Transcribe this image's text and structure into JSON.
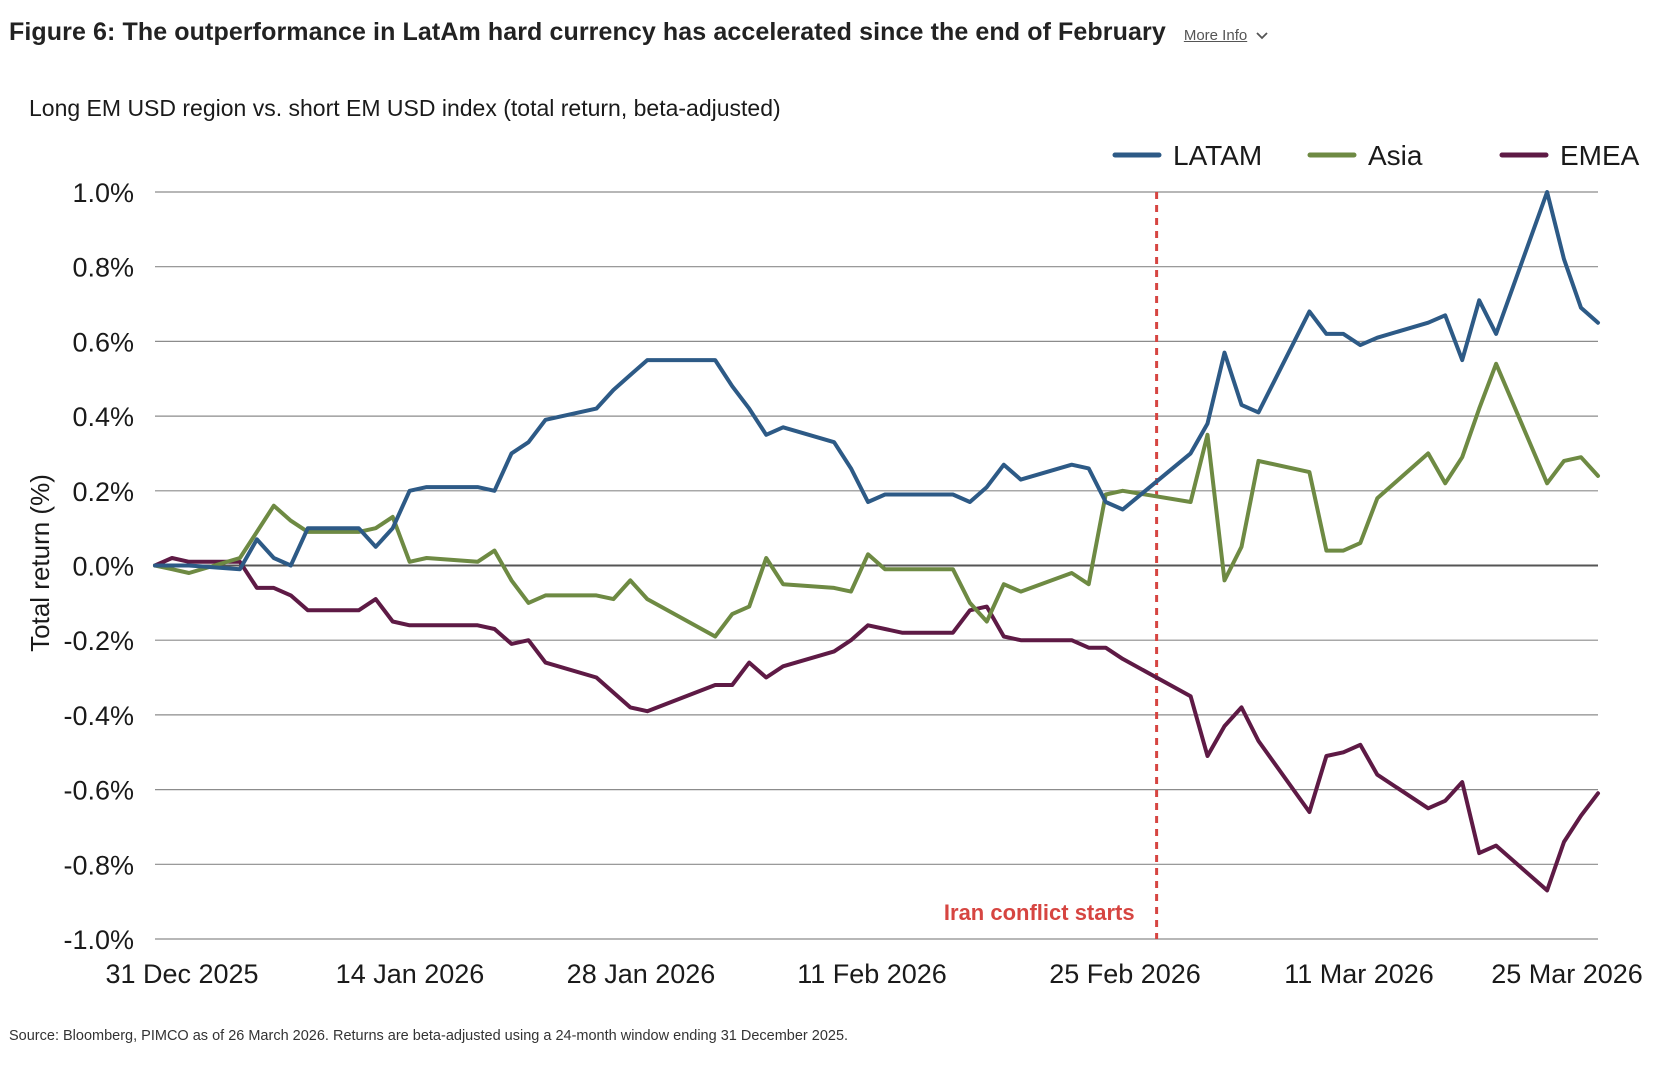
{
  "header": {
    "figure_title": "Figure 6: The outperformance in LatAm hard currency has accelerated since the end of February",
    "more_info_label": "More Info",
    "more_info_icon": "chevron-down-icon"
  },
  "footer": {
    "source": "Source: Bloomberg, PIMCO as of 26 March 2026. Returns are beta-adjusted using a 24-month window ending 31 December 2025."
  },
  "colors": {
    "latam": "#2d5a86",
    "asia": "#6e8a43",
    "emea": "#5e1a45",
    "annotation": "#d64541",
    "grid": "#8c8c8c",
    "zero_line": "#555555"
  },
  "chart_data": {
    "type": "line",
    "subtitle": "Long EM USD region vs. short EM USD index (total return, beta-adjusted)",
    "xlabel": "",
    "ylabel": "Total return (%)",
    "x_ticks": [
      "31 Dec 2025",
      "14 Jan 2026",
      "28 Jan 2026",
      "11 Feb 2026",
      "25 Feb 2026",
      "11 Mar 2026",
      "25 Mar 2026"
    ],
    "x_range": [
      "2025-12-31",
      "2026-03-26"
    ],
    "ylim": [
      -1.0,
      1.0
    ],
    "y_ticks": [
      "1.0%",
      "0.8%",
      "0.6%",
      "0.4%",
      "0.2%",
      "0.0%",
      "-0.2%",
      "-0.4%",
      "-0.6%",
      "-0.8%",
      "-1.0%"
    ],
    "grid": true,
    "legend_position": "top-right",
    "annotation": {
      "label": "Iran conflict starts",
      "x": "2026-02-28"
    },
    "series": [
      {
        "name": "LATAM",
        "points": [
          [
            "2025-12-31",
            0.0
          ],
          [
            "2026-01-01",
            0.0
          ],
          [
            "2026-01-02",
            0.0
          ],
          [
            "2026-01-05",
            -0.01
          ],
          [
            "2026-01-06",
            0.07
          ],
          [
            "2026-01-07",
            0.02
          ],
          [
            "2026-01-08",
            0.0
          ],
          [
            "2026-01-09",
            0.1
          ],
          [
            "2026-01-12",
            0.1
          ],
          [
            "2026-01-13",
            0.05
          ],
          [
            "2026-01-14",
            0.1
          ],
          [
            "2026-01-15",
            0.2
          ],
          [
            "2026-01-16",
            0.21
          ],
          [
            "2026-01-19",
            0.21
          ],
          [
            "2026-01-20",
            0.2
          ],
          [
            "2026-01-21",
            0.3
          ],
          [
            "2026-01-22",
            0.33
          ],
          [
            "2026-01-23",
            0.39
          ],
          [
            "2026-01-26",
            0.42
          ],
          [
            "2026-01-27",
            0.47
          ],
          [
            "2026-01-28",
            0.51
          ],
          [
            "2026-01-29",
            0.55
          ],
          [
            "2026-02-02",
            0.55
          ],
          [
            "2026-02-03",
            0.48
          ],
          [
            "2026-02-04",
            0.42
          ],
          [
            "2026-02-05",
            0.35
          ],
          [
            "2026-02-06",
            0.37
          ],
          [
            "2026-02-09",
            0.33
          ],
          [
            "2026-02-10",
            0.26
          ],
          [
            "2026-02-11",
            0.17
          ],
          [
            "2026-02-12",
            0.19
          ],
          [
            "2026-02-13",
            0.19
          ],
          [
            "2026-02-16",
            0.19
          ],
          [
            "2026-02-17",
            0.17
          ],
          [
            "2026-02-18",
            0.21
          ],
          [
            "2026-02-19",
            0.27
          ],
          [
            "2026-02-20",
            0.23
          ],
          [
            "2026-02-23",
            0.27
          ],
          [
            "2026-02-24",
            0.26
          ],
          [
            "2026-02-25",
            0.17
          ],
          [
            "2026-02-26",
            0.15
          ],
          [
            "2026-03-02",
            0.3
          ],
          [
            "2026-03-03",
            0.38
          ],
          [
            "2026-03-04",
            0.57
          ],
          [
            "2026-03-05",
            0.43
          ],
          [
            "2026-03-06",
            0.41
          ],
          [
            "2026-03-09",
            0.68
          ],
          [
            "2026-03-10",
            0.62
          ],
          [
            "2026-03-11",
            0.62
          ],
          [
            "2026-03-12",
            0.59
          ],
          [
            "2026-03-13",
            0.61
          ],
          [
            "2026-03-16",
            0.65
          ],
          [
            "2026-03-17",
            0.67
          ],
          [
            "2026-03-18",
            0.55
          ],
          [
            "2026-03-19",
            0.71
          ],
          [
            "2026-03-20",
            0.62
          ],
          [
            "2026-03-23",
            1.0
          ],
          [
            "2026-03-24",
            0.82
          ],
          [
            "2026-03-25",
            0.69
          ],
          [
            "2026-03-26",
            0.65
          ]
        ]
      },
      {
        "name": "Asia",
        "points": [
          [
            "2025-12-31",
            0.0
          ],
          [
            "2026-01-01",
            -0.01
          ],
          [
            "2026-01-02",
            -0.02
          ],
          [
            "2026-01-05",
            0.02
          ],
          [
            "2026-01-06",
            0.09
          ],
          [
            "2026-01-07",
            0.16
          ],
          [
            "2026-01-08",
            0.12
          ],
          [
            "2026-01-09",
            0.09
          ],
          [
            "2026-01-12",
            0.09
          ],
          [
            "2026-01-13",
            0.1
          ],
          [
            "2026-01-14",
            0.13
          ],
          [
            "2026-01-15",
            0.01
          ],
          [
            "2026-01-16",
            0.02
          ],
          [
            "2026-01-19",
            0.01
          ],
          [
            "2026-01-20",
            0.04
          ],
          [
            "2026-01-21",
            -0.04
          ],
          [
            "2026-01-22",
            -0.1
          ],
          [
            "2026-01-23",
            -0.08
          ],
          [
            "2026-01-26",
            -0.08
          ],
          [
            "2026-01-27",
            -0.09
          ],
          [
            "2026-01-28",
            -0.04
          ],
          [
            "2026-01-29",
            -0.09
          ],
          [
            "2026-02-02",
            -0.19
          ],
          [
            "2026-02-03",
            -0.13
          ],
          [
            "2026-02-04",
            -0.11
          ],
          [
            "2026-02-05",
            0.02
          ],
          [
            "2026-02-06",
            -0.05
          ],
          [
            "2026-02-09",
            -0.06
          ],
          [
            "2026-02-10",
            -0.07
          ],
          [
            "2026-02-11",
            0.03
          ],
          [
            "2026-02-12",
            -0.01
          ],
          [
            "2026-02-13",
            -0.01
          ],
          [
            "2026-02-16",
            -0.01
          ],
          [
            "2026-02-17",
            -0.1
          ],
          [
            "2026-02-18",
            -0.15
          ],
          [
            "2026-02-19",
            -0.05
          ],
          [
            "2026-02-20",
            -0.07
          ],
          [
            "2026-02-23",
            -0.02
          ],
          [
            "2026-02-24",
            -0.05
          ],
          [
            "2026-02-25",
            0.19
          ],
          [
            "2026-02-26",
            0.2
          ],
          [
            "2026-03-02",
            0.17
          ],
          [
            "2026-03-03",
            0.35
          ],
          [
            "2026-03-04",
            -0.04
          ],
          [
            "2026-03-05",
            0.05
          ],
          [
            "2026-03-06",
            0.28
          ],
          [
            "2026-03-09",
            0.25
          ],
          [
            "2026-03-10",
            0.04
          ],
          [
            "2026-03-11",
            0.04
          ],
          [
            "2026-03-12",
            0.06
          ],
          [
            "2026-03-13",
            0.18
          ],
          [
            "2026-03-16",
            0.3
          ],
          [
            "2026-03-17",
            0.22
          ],
          [
            "2026-03-18",
            0.29
          ],
          [
            "2026-03-19",
            0.42
          ],
          [
            "2026-03-20",
            0.54
          ],
          [
            "2026-03-23",
            0.22
          ],
          [
            "2026-03-24",
            0.28
          ],
          [
            "2026-03-25",
            0.29
          ],
          [
            "2026-03-26",
            0.24
          ]
        ]
      },
      {
        "name": "EMEA",
        "points": [
          [
            "2025-12-31",
            0.0
          ],
          [
            "2026-01-01",
            0.02
          ],
          [
            "2026-01-02",
            0.01
          ],
          [
            "2026-01-05",
            0.01
          ],
          [
            "2026-01-06",
            -0.06
          ],
          [
            "2026-01-07",
            -0.06
          ],
          [
            "2026-01-08",
            -0.08
          ],
          [
            "2026-01-09",
            -0.12
          ],
          [
            "2026-01-12",
            -0.12
          ],
          [
            "2026-01-13",
            -0.09
          ],
          [
            "2026-01-14",
            -0.15
          ],
          [
            "2026-01-15",
            -0.16
          ],
          [
            "2026-01-16",
            -0.16
          ],
          [
            "2026-01-19",
            -0.16
          ],
          [
            "2026-01-20",
            -0.17
          ],
          [
            "2026-01-21",
            -0.21
          ],
          [
            "2026-01-22",
            -0.2
          ],
          [
            "2026-01-23",
            -0.26
          ],
          [
            "2026-01-26",
            -0.3
          ],
          [
            "2026-01-27",
            -0.34
          ],
          [
            "2026-01-28",
            -0.38
          ],
          [
            "2026-01-29",
            -0.39
          ],
          [
            "2026-02-02",
            -0.32
          ],
          [
            "2026-02-03",
            -0.32
          ],
          [
            "2026-02-04",
            -0.26
          ],
          [
            "2026-02-05",
            -0.3
          ],
          [
            "2026-02-06",
            -0.27
          ],
          [
            "2026-02-09",
            -0.23
          ],
          [
            "2026-02-10",
            -0.2
          ],
          [
            "2026-02-11",
            -0.16
          ],
          [
            "2026-02-12",
            -0.17
          ],
          [
            "2026-02-13",
            -0.18
          ],
          [
            "2026-02-16",
            -0.18
          ],
          [
            "2026-02-17",
            -0.12
          ],
          [
            "2026-02-18",
            -0.11
          ],
          [
            "2026-02-19",
            -0.19
          ],
          [
            "2026-02-20",
            -0.2
          ],
          [
            "2026-02-23",
            -0.2
          ],
          [
            "2026-02-24",
            -0.22
          ],
          [
            "2026-02-25",
            -0.22
          ],
          [
            "2026-02-26",
            -0.25
          ],
          [
            "2026-03-02",
            -0.35
          ],
          [
            "2026-03-03",
            -0.51
          ],
          [
            "2026-03-04",
            -0.43
          ],
          [
            "2026-03-05",
            -0.38
          ],
          [
            "2026-03-06",
            -0.47
          ],
          [
            "2026-03-09",
            -0.66
          ],
          [
            "2026-03-10",
            -0.51
          ],
          [
            "2026-03-11",
            -0.5
          ],
          [
            "2026-03-12",
            -0.48
          ],
          [
            "2026-03-13",
            -0.56
          ],
          [
            "2026-03-16",
            -0.65
          ],
          [
            "2026-03-17",
            -0.63
          ],
          [
            "2026-03-18",
            -0.58
          ],
          [
            "2026-03-19",
            -0.77
          ],
          [
            "2026-03-20",
            -0.75
          ],
          [
            "2026-03-23",
            -0.87
          ],
          [
            "2026-03-24",
            -0.74
          ],
          [
            "2026-03-25",
            -0.67
          ],
          [
            "2026-03-26",
            -0.61
          ]
        ]
      }
    ]
  }
}
